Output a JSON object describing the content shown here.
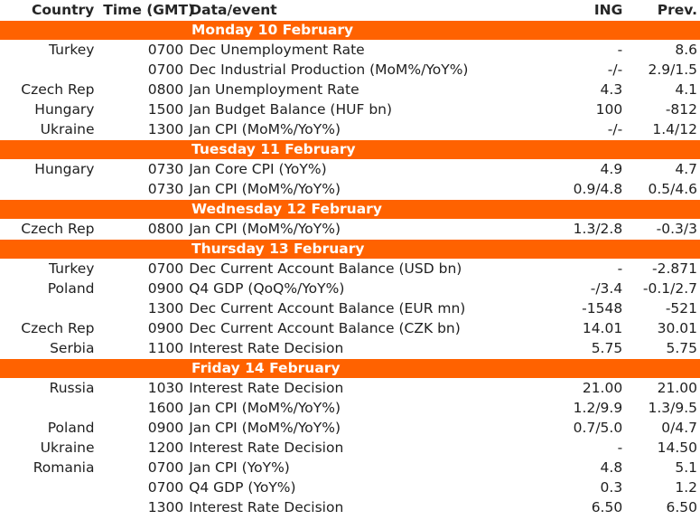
{
  "header": {
    "country": "Country",
    "time": "Time (GMT)",
    "event": "Data/event",
    "ing": "ING",
    "prev": "Prev."
  },
  "days": [
    {
      "label": "Monday 10 February",
      "rows": [
        {
          "country": "Turkey",
          "time": "0700",
          "event": "Dec Unemployment Rate",
          "ing": "-",
          "prev": "8.6"
        },
        {
          "country": "",
          "time": "0700",
          "event": "Dec Industrial Production (MoM%/YoY%)",
          "ing": "-/-",
          "prev": "2.9/1.5"
        },
        {
          "country": "Czech Rep",
          "time": "0800",
          "event": "Jan Unemployment Rate",
          "ing": "4.3",
          "prev": "4.1"
        },
        {
          "country": "Hungary",
          "time": "1500",
          "event": "Jan Budget Balance (HUF bn)",
          "ing": "100",
          "prev": "-812"
        },
        {
          "country": "Ukraine",
          "time": "1300",
          "event": "Jan CPI (MoM%/YoY%)",
          "ing": "-/-",
          "prev": "1.4/12"
        }
      ]
    },
    {
      "label": "Tuesday 11 February",
      "rows": [
        {
          "country": "Hungary",
          "time": "0730",
          "event": "Jan Core CPI (YoY%)",
          "ing": "4.9",
          "prev": "4.7"
        },
        {
          "country": "",
          "time": "0730",
          "event": "Jan CPI (MoM%/YoY%)",
          "ing": "0.9/4.8",
          "prev": "0.5/4.6"
        }
      ]
    },
    {
      "label": "Wednesday 12 February",
      "rows": [
        {
          "country": "Czech Rep",
          "time": "0800",
          "event": "Jan CPI (MoM%/YoY%)",
          "ing": "1.3/2.8",
          "prev": "-0.3/3"
        }
      ]
    },
    {
      "label": "Thursday 13 February",
      "rows": [
        {
          "country": "Turkey",
          "time": "0700",
          "event": "Dec Current Account Balance (USD bn)",
          "ing": "-",
          "prev": "-2.871"
        },
        {
          "country": "Poland",
          "time": "0900",
          "event": "Q4 GDP (QoQ%/YoY%)",
          "ing": "-/3.4",
          "prev": "-0.1/2.7"
        },
        {
          "country": "",
          "time": "1300",
          "event": "Dec Current Account Balance (EUR mn)",
          "ing": "-1548",
          "prev": "-521"
        },
        {
          "country": "Czech Rep",
          "time": "0900",
          "event": "Dec Current Account Balance (CZK bn)",
          "ing": "14.01",
          "prev": "30.01"
        },
        {
          "country": "Serbia",
          "time": "1100",
          "event": "Interest Rate Decision",
          "ing": "5.75",
          "prev": "5.75"
        }
      ]
    },
    {
      "label": "Friday 14 February",
      "rows": [
        {
          "country": "Russia",
          "time": "1030",
          "event": "Interest Rate Decision",
          "ing": "21.00",
          "prev": "21.00"
        },
        {
          "country": "",
          "time": "1600",
          "event": "Jan CPI (MoM%/YoY%)",
          "ing": "1.2/9.9",
          "prev": "1.3/9.5"
        },
        {
          "country": "Poland",
          "time": "0900",
          "event": "Jan CPI (MoM%/YoY%)",
          "ing": "0.7/5.0",
          "prev": "0/4.7"
        },
        {
          "country": "Ukraine",
          "time": "1200",
          "event": "Interest Rate Decision",
          "ing": "-",
          "prev": "14.50"
        },
        {
          "country": "Romania",
          "time": "0700",
          "event": "Jan CPI (YoY%)",
          "ing": "4.8",
          "prev": "5.1"
        },
        {
          "country": "",
          "time": "0700",
          "event": "Q4 GDP (YoY%)",
          "ing": "0.3",
          "prev": "1.2"
        },
        {
          "country": "",
          "time": "1300",
          "event": "Interest Rate Decision",
          "ing": "6.50",
          "prev": "6.50"
        }
      ]
    }
  ],
  "colors": {
    "day_band": "#ff6200",
    "day_text": "#ffffff",
    "text": "#1f1f1f"
  }
}
